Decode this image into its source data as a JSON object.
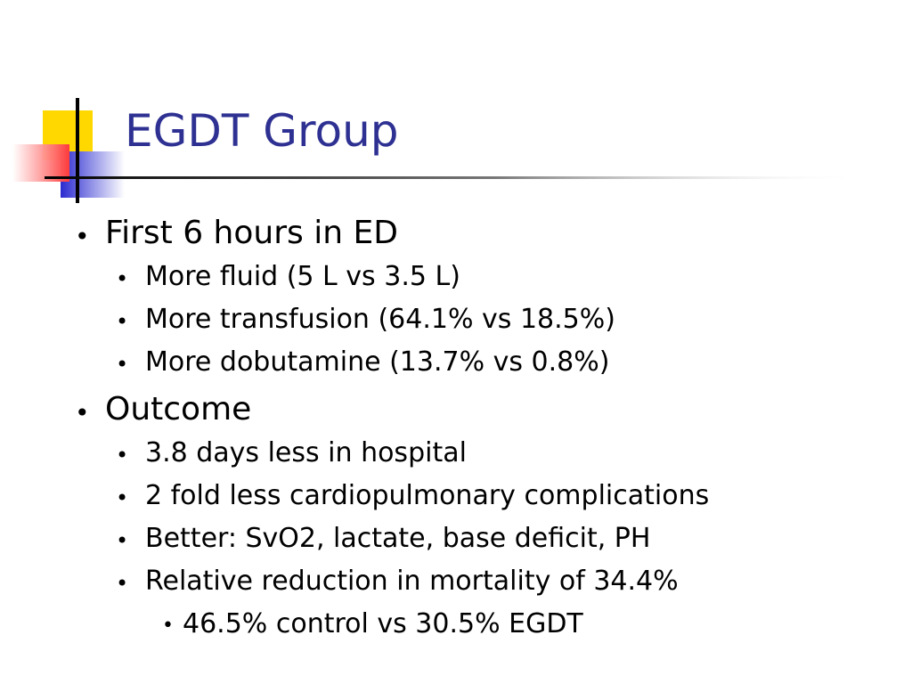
{
  "slide": {
    "title": "EGDT Group",
    "accent_color": "#2e3192",
    "logo_colors": {
      "yellow": "#ffd800",
      "red": "#ff3b3b",
      "blue": "#3333cc"
    },
    "bullet_char": "•",
    "items": [
      {
        "level": 1,
        "text": "First 6 hours in ED"
      },
      {
        "level": 2,
        "text": "More fluid (5 L vs 3.5 L)"
      },
      {
        "level": 2,
        "text": "More transfusion (64.1% vs 18.5%)"
      },
      {
        "level": 2,
        "text": "More dobutamine (13.7% vs 0.8%)"
      },
      {
        "level": 1,
        "text": "Outcome"
      },
      {
        "level": 2,
        "text": "3.8 days less in hospital"
      },
      {
        "level": 2,
        "text": "2 fold less cardiopulmonary complications"
      },
      {
        "level": 2,
        "text": "Better: SvO2, lactate, base deficit, PH"
      },
      {
        "level": 2,
        "text": "Relative reduction in mortality of 34.4%"
      },
      {
        "level": 3,
        "text": "46.5% control vs 30.5% EGDT"
      }
    ]
  }
}
